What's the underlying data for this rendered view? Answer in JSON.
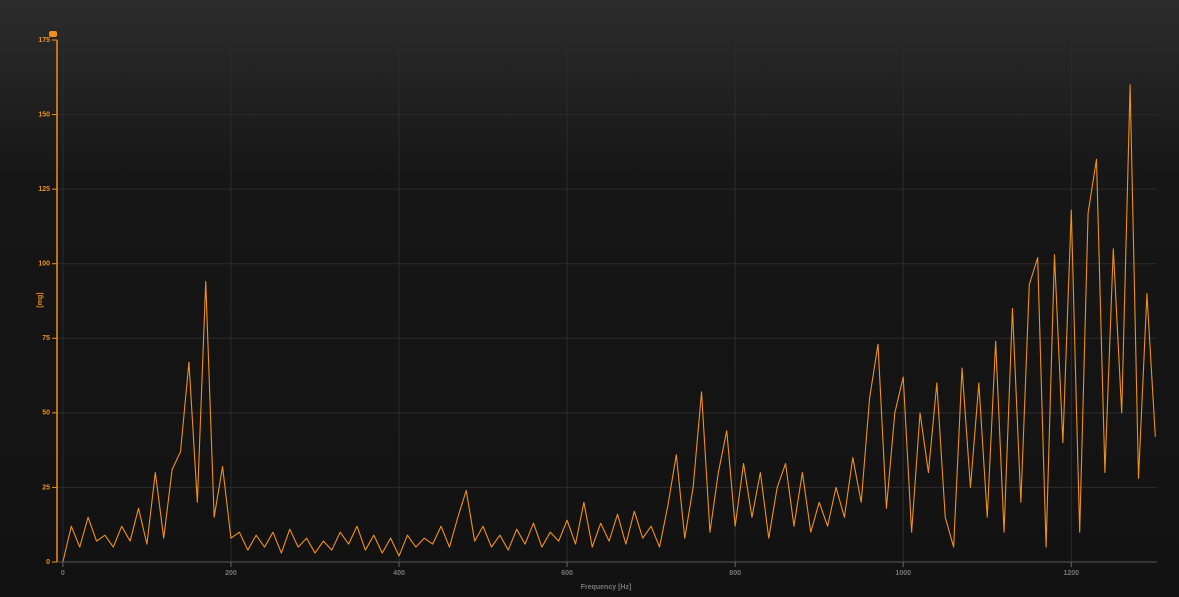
{
  "chart_data": {
    "type": "line",
    "x_label": "Frequency [Hz]",
    "y_label": "[mg]",
    "x": [
      0,
      10,
      20,
      30,
      40,
      50,
      60,
      70,
      80,
      90,
      100,
      110,
      120,
      130,
      140,
      150,
      160,
      170,
      180,
      190,
      200,
      210,
      220,
      230,
      240,
      250,
      260,
      270,
      280,
      290,
      300,
      310,
      320,
      330,
      340,
      350,
      360,
      370,
      380,
      390,
      400,
      410,
      420,
      430,
      440,
      450,
      460,
      470,
      480,
      490,
      500,
      510,
      520,
      530,
      540,
      550,
      560,
      570,
      580,
      590,
      600,
      610,
      620,
      630,
      640,
      650,
      660,
      670,
      680,
      690,
      700,
      710,
      720,
      730,
      740,
      750,
      760,
      770,
      780,
      790,
      800,
      810,
      820,
      830,
      840,
      850,
      860,
      870,
      880,
      890,
      900,
      910,
      920,
      930,
      940,
      950,
      960,
      970,
      980,
      990,
      1000,
      1010,
      1020,
      1030,
      1040,
      1050,
      1060,
      1070,
      1080,
      1090,
      1100,
      1110,
      1120,
      1130,
      1140,
      1150,
      1160,
      1170,
      1180,
      1190,
      1200,
      1210,
      1220,
      1230,
      1240,
      1250,
      1260,
      1270,
      1280,
      1290,
      1300
    ],
    "values": [
      0,
      12,
      5,
      15,
      7,
      9,
      5,
      12,
      7,
      18,
      6,
      30,
      8,
      31,
      37,
      67,
      20,
      94,
      15,
      32,
      8,
      10,
      4,
      9,
      5,
      10,
      3,
      11,
      5,
      8,
      3,
      7,
      4,
      10,
      6,
      12,
      4,
      9,
      3,
      8,
      2,
      9,
      5,
      8,
      6,
      12,
      5,
      15,
      24,
      7,
      12,
      5,
      9,
      4,
      11,
      6,
      13,
      5,
      10,
      7,
      14,
      6,
      20,
      5,
      13,
      7,
      16,
      6,
      17,
      8,
      12,
      5,
      19,
      36,
      8,
      25,
      57,
      10,
      30,
      44,
      12,
      33,
      15,
      30,
      8,
      25,
      33,
      12,
      30,
      10,
      20,
      12,
      25,
      15,
      35,
      20,
      55,
      73,
      18,
      50,
      62,
      10,
      50,
      30,
      60,
      15,
      5,
      65,
      25,
      60,
      15,
      74,
      10,
      85,
      20,
      93,
      102,
      5,
      103,
      40,
      118,
      10,
      117,
      135,
      30,
      105,
      50,
      160,
      28,
      90,
      42
    ],
    "color": "#f0901a",
    "xlim": [
      -7,
      1302
    ],
    "ylim": [
      0,
      175
    ],
    "xticks": [
      0,
      200,
      400,
      600,
      800,
      1000,
      1200
    ],
    "yticks": [
      0,
      25,
      50,
      75,
      100,
      125,
      150,
      175
    ],
    "grid": true
  }
}
